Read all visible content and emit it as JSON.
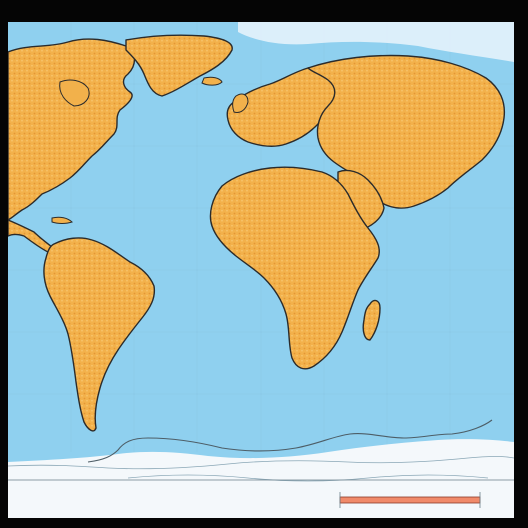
{
  "map": {
    "projection": "world",
    "colors": {
      "ocean": "#8fd0ef",
      "land": "#f2b14b",
      "coast": "#2b2b2b",
      "frame": "#050505",
      "scale_bar": "#f08a6a"
    },
    "regions": [
      "north-america",
      "south-america",
      "greenland",
      "europe",
      "asia",
      "africa",
      "madagascar",
      "arabian-peninsula",
      "antarctica"
    ]
  }
}
